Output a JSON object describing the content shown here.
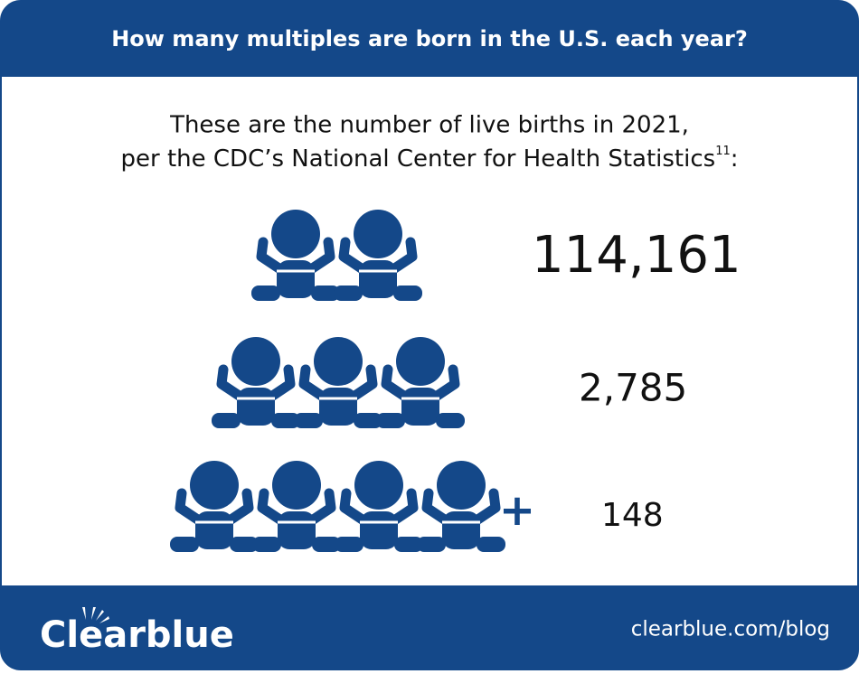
{
  "header": {
    "title": "How many multiples are born in the U.S. each year?"
  },
  "subtitle": {
    "line1": "These are the number of live births in 2021,",
    "line2": "per the CDC’s National Center for Health Statistics",
    "footnote": "11",
    "line2_end": ":"
  },
  "rows": [
    {
      "babies": 2,
      "births": "114,161"
    },
    {
      "babies": 3,
      "births": "2,785"
    },
    {
      "babies": 4,
      "plus": "+",
      "births": "148"
    }
  ],
  "footer": {
    "logo": "Clearblue",
    "url": "clearblue.com/blog"
  }
}
